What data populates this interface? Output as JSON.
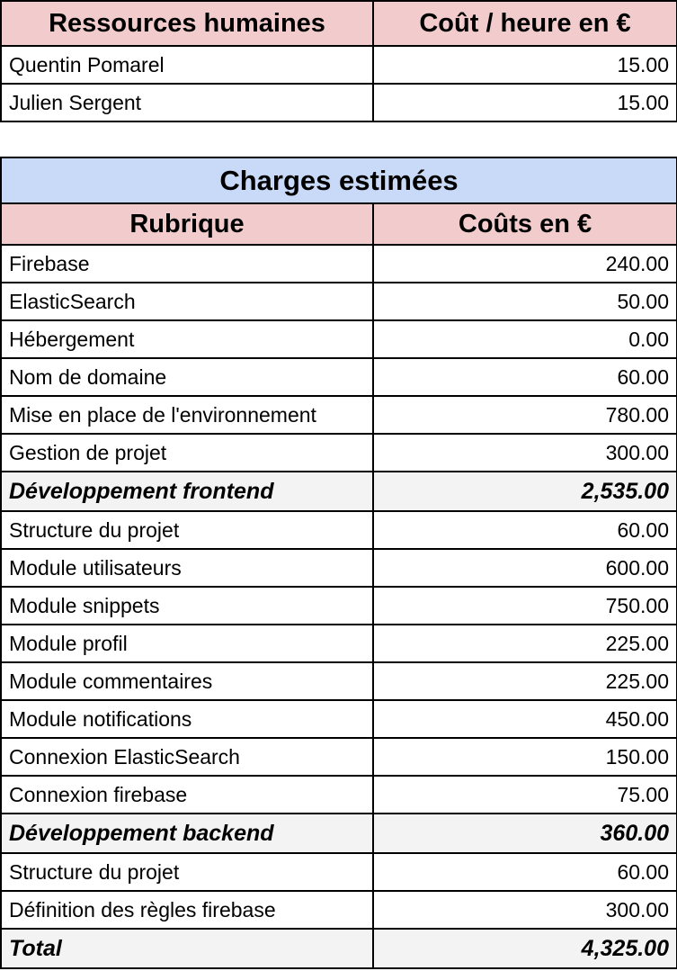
{
  "resources": {
    "header": {
      "name": "Ressources humaines",
      "cost": "Coût / heure en €"
    },
    "rows": [
      {
        "name": "Quentin Pomarel",
        "cost": "15.00"
      },
      {
        "name": "Julien Sergent",
        "cost": "15.00"
      }
    ]
  },
  "charges": {
    "title": "Charges estimées",
    "header": {
      "name": "Rubrique",
      "cost": "Coûts en €"
    },
    "rows": [
      {
        "name": "Firebase",
        "cost": "240.00",
        "subtotal": false
      },
      {
        "name": "ElasticSearch",
        "cost": "50.00",
        "subtotal": false
      },
      {
        "name": "Hébergement",
        "cost": "0.00",
        "subtotal": false
      },
      {
        "name": "Nom de domaine",
        "cost": "60.00",
        "subtotal": false
      },
      {
        "name": "Mise en place de l'environnement",
        "cost": "780.00",
        "subtotal": false
      },
      {
        "name": "Gestion de projet",
        "cost": "300.00",
        "subtotal": false
      },
      {
        "name": "Développement frontend",
        "cost": "2,535.00",
        "subtotal": true
      },
      {
        "name": "Structure du projet",
        "cost": "60.00",
        "subtotal": false
      },
      {
        "name": "Module utilisateurs",
        "cost": "600.00",
        "subtotal": false
      },
      {
        "name": "Module snippets",
        "cost": "750.00",
        "subtotal": false
      },
      {
        "name": "Module profil",
        "cost": "225.00",
        "subtotal": false
      },
      {
        "name": "Module commentaires",
        "cost": "225.00",
        "subtotal": false
      },
      {
        "name": "Module notifications",
        "cost": "450.00",
        "subtotal": false
      },
      {
        "name": "Connexion ElasticSearch",
        "cost": "150.00",
        "subtotal": false
      },
      {
        "name": "Connexion firebase",
        "cost": "75.00",
        "subtotal": false
      },
      {
        "name": "Développement backend",
        "cost": "360.00",
        "subtotal": true
      },
      {
        "name": "Structure du projet",
        "cost": "60.00",
        "subtotal": false
      },
      {
        "name": "Définition des règles firebase",
        "cost": "300.00",
        "subtotal": false
      },
      {
        "name": "Total",
        "cost": "4,325.00",
        "subtotal": true
      }
    ]
  },
  "colors": {
    "header_bg": "#f2cccc",
    "title_bg": "#c9daf8",
    "subtotal_bg": "#f3f3f3"
  }
}
